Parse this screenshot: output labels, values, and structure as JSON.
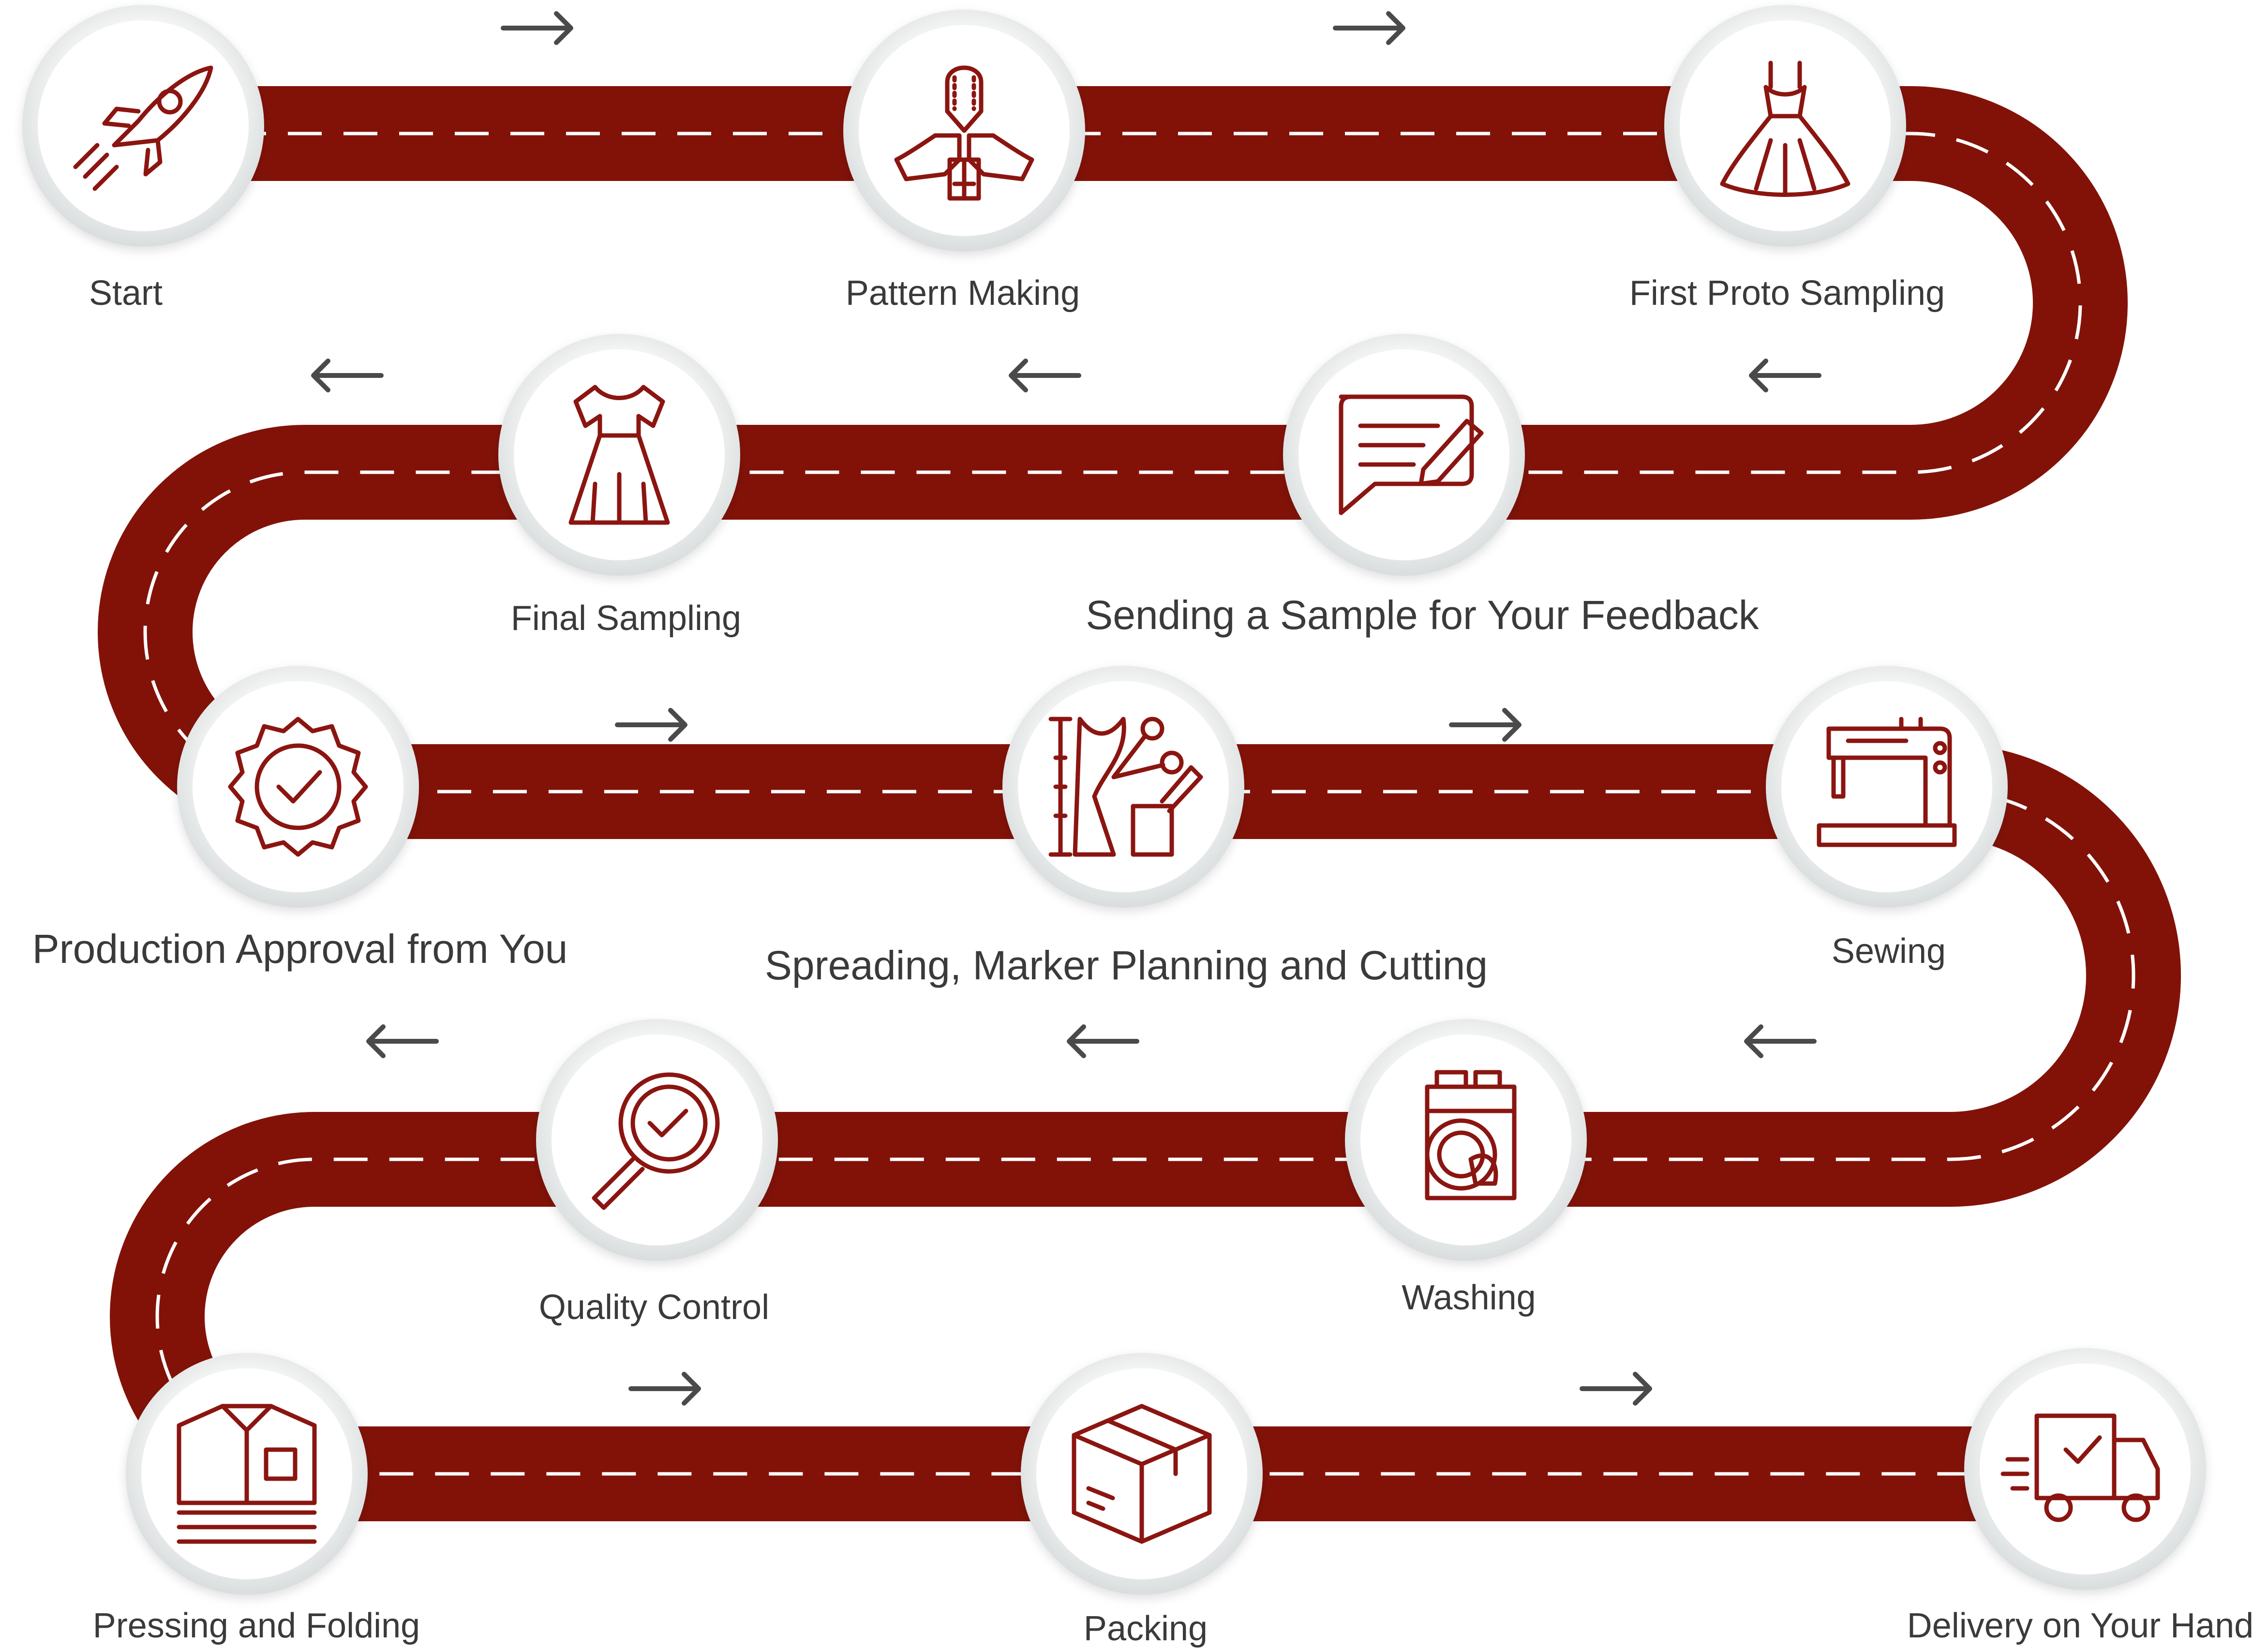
{
  "colors": {
    "road": "#821208",
    "road_dash": "#ffffff",
    "icon": "#8B1510",
    "label": "#3a3a3a",
    "arrow": "#4a4a4a",
    "node_ring": "#e6e9e9"
  },
  "steps": [
    {
      "label": "Start",
      "icon": "rocket-icon"
    },
    {
      "label": "Pattern Making",
      "icon": "pattern-pieces-icon"
    },
    {
      "label": "First Proto Sampling",
      "icon": "dress-icon"
    },
    {
      "label": "Sending a Sample for Your Feedback",
      "icon": "chat-edit-icon"
    },
    {
      "label": "Final Sampling",
      "icon": "sleeve-dress-icon"
    },
    {
      "label": "Production Approval from You",
      "icon": "approval-badge-icon"
    },
    {
      "label": "Spreading, Marker Planning and Cutting",
      "icon": "cutting-tools-icon"
    },
    {
      "label": "Sewing",
      "icon": "sewing-machine-icon"
    },
    {
      "label": "Washing",
      "icon": "washing-machine-icon"
    },
    {
      "label": "Quality Control",
      "icon": "magnifier-check-icon"
    },
    {
      "label": "Pressing and Folding",
      "icon": "folded-shirts-icon"
    },
    {
      "label": "Packing",
      "icon": "box-icon"
    },
    {
      "label": "Delivery on Your Hand",
      "icon": "delivery-truck-icon"
    }
  ],
  "arrows": [
    "right",
    "right",
    "left",
    "left",
    "left",
    "right",
    "right",
    "left",
    "left",
    "left",
    "right",
    "right"
  ]
}
